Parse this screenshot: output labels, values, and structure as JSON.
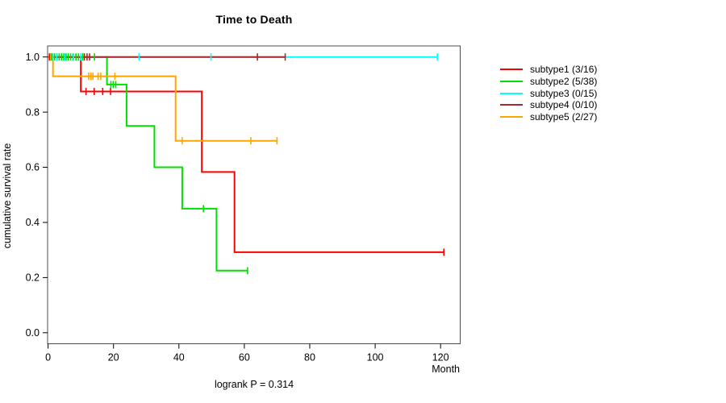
{
  "chart_data": {
    "type": "line",
    "chart_kind": "kaplan-meier-step-survival",
    "title": "Time to Death",
    "xlabel": "Month",
    "ylabel": "cumulative survival rate",
    "footnote": "logrank P = 0.314",
    "xticks": [
      "0",
      "20",
      "40",
      "60",
      "80",
      "100",
      "120"
    ],
    "yticks": [
      "0.0",
      "0.2",
      "0.4",
      "0.6",
      "0.8",
      "1.0"
    ],
    "xlim": [
      -0.15,
      126
    ],
    "ylim": [
      -0.04,
      1.04
    ],
    "grid": "off",
    "legend_position": "right-outside",
    "box_color": "#4d4d4d",
    "series": [
      {
        "name": "subtype1 (3/16)",
        "color": "#ff0000",
        "steps": [
          [
            0,
            1
          ],
          [
            10,
            1
          ],
          [
            10,
            0.875
          ],
          [
            47,
            0.875
          ],
          [
            47,
            0.583
          ],
          [
            57,
            0.583
          ],
          [
            57,
            0.292
          ],
          [
            121,
            0.292
          ]
        ],
        "censor_marks": [
          [
            0.4,
            1
          ],
          [
            0.9,
            1
          ],
          [
            11.6,
            0.875
          ],
          [
            14.1,
            0.875
          ],
          [
            16.7,
            0.875
          ],
          [
            19.1,
            0.875
          ],
          [
            121,
            0.292
          ]
        ]
      },
      {
        "name": "subtype2 (5/38)",
        "color": "#00e000",
        "steps": [
          [
            0,
            1
          ],
          [
            18,
            1
          ],
          [
            18,
            0.9
          ],
          [
            24,
            0.9
          ],
          [
            24,
            0.75
          ],
          [
            32.5,
            0.75
          ],
          [
            32.5,
            0.6
          ],
          [
            41,
            0.6
          ],
          [
            41,
            0.45
          ],
          [
            51.5,
            0.45
          ],
          [
            51.5,
            0.225
          ],
          [
            61,
            0.225
          ]
        ],
        "censor_marks": [
          [
            1.3,
            1
          ],
          [
            2,
            1
          ],
          [
            2.7,
            1
          ],
          [
            3.4,
            1
          ],
          [
            4.1,
            1
          ],
          [
            4.8,
            1
          ],
          [
            5.5,
            1
          ],
          [
            6.2,
            1
          ],
          [
            6.9,
            1
          ],
          [
            7.6,
            1
          ],
          [
            8.5,
            1
          ],
          [
            9.3,
            1
          ],
          [
            10.6,
            1
          ],
          [
            14.2,
            1
          ],
          [
            19.2,
            0.9
          ],
          [
            19.9,
            0.9
          ],
          [
            20.7,
            0.9
          ],
          [
            47.5,
            0.45
          ],
          [
            61,
            0.225
          ]
        ]
      },
      {
        "name": "subtype3 (0/15)",
        "color": "#00ffff",
        "steps": [
          [
            0,
            1
          ],
          [
            119,
            1
          ]
        ],
        "censor_marks": [
          [
            1.5,
            1
          ],
          [
            2.6,
            1
          ],
          [
            5.1,
            1
          ],
          [
            7.8,
            1
          ],
          [
            10,
            1
          ],
          [
            27.8,
            1
          ],
          [
            49.8,
            1
          ],
          [
            119,
            1
          ]
        ]
      },
      {
        "name": "subtype4 (0/10)",
        "color": "#a52a2a",
        "steps": [
          [
            0,
            1
          ],
          [
            72.5,
            1
          ]
        ],
        "censor_marks": [
          [
            11.1,
            1
          ],
          [
            11.9,
            1
          ],
          [
            12.7,
            1
          ],
          [
            64,
            1
          ],
          [
            72.5,
            1
          ]
        ]
      },
      {
        "name": "subtype5 (2/27)",
        "color": "#ffa500",
        "steps": [
          [
            0,
            1
          ],
          [
            1.5,
            1
          ],
          [
            1.5,
            0.93
          ],
          [
            39,
            0.93
          ],
          [
            39,
            0.696
          ],
          [
            70,
            0.696
          ]
        ],
        "censor_marks": [
          [
            0.8,
            1
          ],
          [
            12.4,
            0.93
          ],
          [
            13.1,
            0.93
          ],
          [
            13.7,
            0.93
          ],
          [
            15.3,
            0.93
          ],
          [
            16.1,
            0.93
          ],
          [
            20.4,
            0.93
          ],
          [
            41,
            0.696
          ],
          [
            62,
            0.696
          ],
          [
            70,
            0.696
          ]
        ]
      }
    ]
  }
}
